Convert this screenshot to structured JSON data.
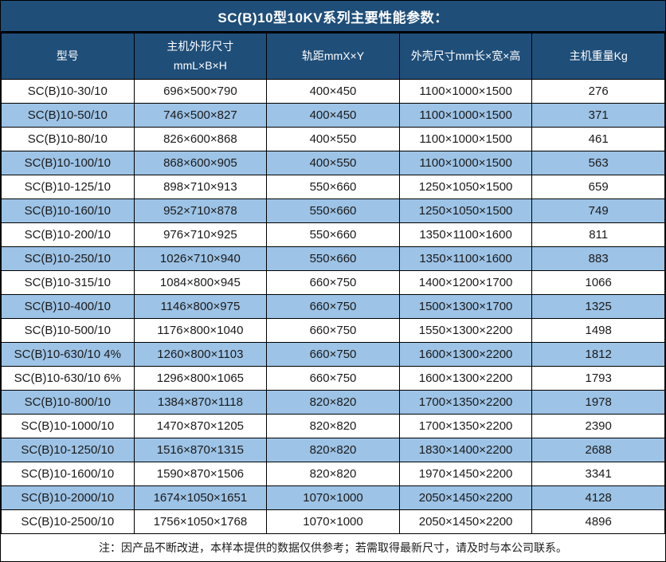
{
  "title": "SC(B)10型10KV系列主要性能参数：",
  "note": "注：因产品不断改进，本样本提供的数据仅供参考；若需取得最新尺寸，请及时与本公司联系。",
  "colors": {
    "header_blue": "#1f4e79",
    "row_alt_blue": "#9dc3e6",
    "border": "#000000",
    "header_text": "#ffffff",
    "body_text": "#1a1a1a"
  },
  "table": {
    "columns": [
      {
        "text": "型号",
        "sub": ""
      },
      {
        "text": "主机外形尺寸",
        "sub": "mmL×B×H"
      },
      {
        "text": "轨距mmX×Y",
        "sub": ""
      },
      {
        "text": "外壳尺寸mm长×宽×高",
        "sub": ""
      },
      {
        "text": "主机重量Kg",
        "sub": ""
      }
    ],
    "rows": [
      [
        "SC(B)10-30/10",
        "696×500×790",
        "400×450",
        "1100×1000×1500",
        "276"
      ],
      [
        "SC(B)10-50/10",
        "746×500×827",
        "400×450",
        "1100×1000×1500",
        "371"
      ],
      [
        "SC(B)10-80/10",
        "826×600×868",
        "400×550",
        "1100×1000×1500",
        "461"
      ],
      [
        "SC(B)10-100/10",
        "868×600×905",
        "400×550",
        "1100×1000×1500",
        "563"
      ],
      [
        "SC(B)10-125/10",
        "898×710×913",
        "550×660",
        "1250×1050×1500",
        "659"
      ],
      [
        "SC(B)10-160/10",
        "952×710×878",
        "550×660",
        "1250×1050×1500",
        "749"
      ],
      [
        "SC(B)10-200/10",
        "976×710×925",
        "550×660",
        "1350×1100×1600",
        "811"
      ],
      [
        "SC(B)10-250/10",
        "1026×710×940",
        "550×660",
        "1350×1100×1600",
        "883"
      ],
      [
        "SC(B)10-315/10",
        "1084×800×945",
        "660×750",
        "1400×1200×1700",
        "1066"
      ],
      [
        "SC(B)10-400/10",
        "1146×800×975",
        "660×750",
        "1500×1300×1700",
        "1325"
      ],
      [
        "SC(B)10-500/10",
        "1176×800×1040",
        "660×750",
        "1550×1300×2200",
        "1498"
      ],
      [
        "SC(B)10-630/10 4%",
        "1260×800×1103",
        "660×750",
        "1600×1300×2200",
        "1812"
      ],
      [
        "SC(B)10-630/10 6%",
        "1296×800×1065",
        "660×750",
        "1600×1300×2200",
        "1793"
      ],
      [
        "SC(B)10-800/10",
        "1384×870×1118",
        "820×820",
        "1700×1350×2200",
        "1978"
      ],
      [
        "SC(B)10-1000/10",
        "1470×870×1205",
        "820×820",
        "1700×1350×2200",
        "2390"
      ],
      [
        "SC(B)10-1250/10",
        "1516×870×1315",
        "820×820",
        "1830×1400×2200",
        "2688"
      ],
      [
        "SC(B)10-1600/10",
        "1590×870×1506",
        "820×820",
        "1970×1450×2200",
        "3341"
      ],
      [
        "SC(B)10-2000/10",
        "1674×1050×1651",
        "1070×1000",
        "2050×1450×2200",
        "4128"
      ],
      [
        "SC(B)10-2500/10",
        "1756×1050×1768",
        "1070×1000",
        "2050×1450×2200",
        "4896"
      ]
    ]
  }
}
